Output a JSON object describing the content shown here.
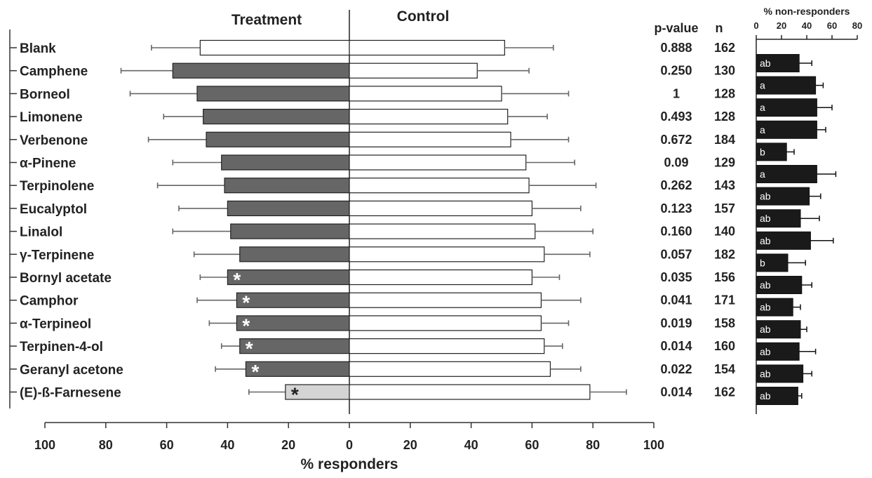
{
  "chart_data": [
    {
      "type": "bar",
      "orientation": "horizontal",
      "layout": "diverging",
      "categories": [
        "Blank",
        "Camphene",
        "Borneol",
        "Limonene",
        "Verbenone",
        "α-Pinene",
        "Terpinolene",
        "Eucalyptol",
        "Linalol",
        "γ-Terpinene",
        "Bornyl acetate",
        "Camphor",
        "α-Terpineol",
        "Terpinen-4-ol",
        "Geranyl acetone",
        "(E)-ß-Farnesene"
      ],
      "series": [
        {
          "name": "Treatment",
          "values": [
            49,
            58,
            50,
            48,
            47,
            42,
            41,
            40,
            39,
            36,
            40,
            37,
            37,
            36,
            34,
            21
          ],
          "error": [
            16,
            17,
            22,
            13,
            19,
            16,
            22,
            16,
            19,
            15,
            9,
            13,
            9,
            6,
            10,
            12
          ],
          "significant": [
            false,
            false,
            false,
            false,
            false,
            false,
            false,
            false,
            false,
            false,
            true,
            true,
            true,
            true,
            true,
            true
          ],
          "colors": [
            "#ffffff",
            "#666666",
            "#666666",
            "#666666",
            "#666666",
            "#666666",
            "#666666",
            "#666666",
            "#666666",
            "#666666",
            "#666666",
            "#666666",
            "#666666",
            "#666666",
            "#666666",
            "#d4d4d4"
          ]
        },
        {
          "name": "Control",
          "values": [
            51,
            42,
            50,
            52,
            53,
            58,
            59,
            60,
            61,
            64,
            60,
            63,
            63,
            64,
            66,
            79
          ],
          "error": [
            16,
            17,
            22,
            13,
            19,
            16,
            22,
            16,
            19,
            15,
            9,
            13,
            9,
            6,
            10,
            12
          ],
          "color": "#ffffff"
        }
      ],
      "xlabel": "% responders",
      "xticks": [
        100,
        80,
        60,
        40,
        20,
        0,
        20,
        40,
        60,
        80,
        100
      ],
      "xlim": [
        -100,
        100
      ],
      "p_value_header": "p-value",
      "n_header": "n",
      "p_values": [
        "0.888",
        "0.250",
        "1",
        "0.493",
        "0.672",
        "0.09",
        "0.262",
        "0.123",
        "0.160",
        "0.057",
        "0.035",
        "0.041",
        "0.019",
        "0.014",
        "0.022",
        "0.014"
      ],
      "n_values": [
        "162",
        "130",
        "128",
        "128",
        "184",
        "129",
        "143",
        "157",
        "140",
        "182",
        "156",
        "171",
        "158",
        "160",
        "154",
        "162"
      ],
      "significance_marker": "*"
    },
    {
      "type": "bar",
      "orientation": "horizontal",
      "title": "% non-responders",
      "xlim": [
        0,
        80
      ],
      "xticks": [
        0,
        20,
        40,
        60,
        80
      ],
      "values": [
        34,
        47,
        48,
        48,
        24,
        48,
        42,
        35,
        43,
        25,
        36,
        29,
        35,
        34,
        37,
        33
      ],
      "error": [
        10,
        6,
        12,
        7,
        6,
        15,
        9,
        15,
        18,
        14,
        8,
        6,
        5,
        13,
        7,
        3
      ],
      "labels": [
        "ab",
        "a",
        "a",
        "a",
        "b",
        "a",
        "ab",
        "ab",
        "ab",
        "b",
        "ab",
        "ab",
        "ab",
        "ab",
        "ab",
        "ab"
      ],
      "color": "#1a1a1a"
    }
  ]
}
